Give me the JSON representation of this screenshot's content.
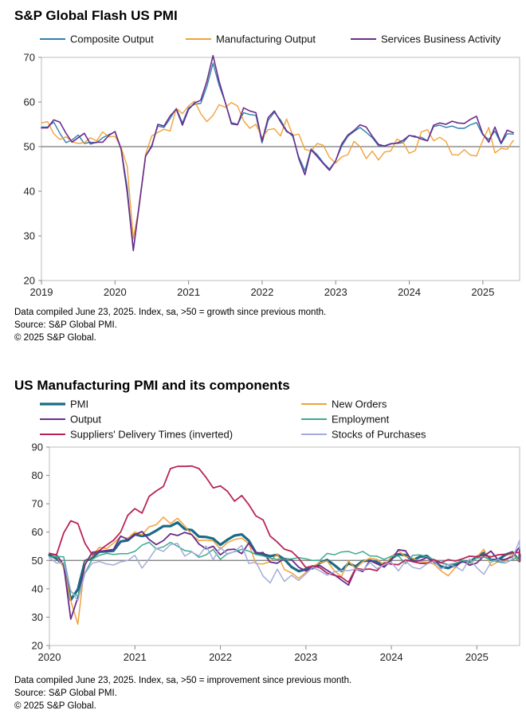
{
  "chart_data": [
    {
      "type": "line",
      "title": "S&P Global Flash US PMI",
      "xlabel": "",
      "ylabel": "",
      "ylim": [
        20,
        70
      ],
      "yticks": [
        20,
        30,
        40,
        50,
        60,
        70
      ],
      "xlim": [
        2019.0,
        2025.5
      ],
      "xticks": [
        {
          "value": 2019,
          "label": "2019"
        },
        {
          "value": 2020,
          "label": "2020"
        },
        {
          "value": 2021,
          "label": "2021"
        },
        {
          "value": 2022,
          "label": "2022"
        },
        {
          "value": 2023,
          "label": "2023"
        },
        {
          "value": 2024,
          "label": "2024"
        },
        {
          "value": 2025,
          "label": "2025"
        }
      ],
      "reference_line": 50,
      "start": 2019.0,
      "step": 0.0833,
      "series": [
        {
          "name": "Composite Output",
          "color": "#2e7fae",
          "width": 1.4,
          "values": [
            54.4,
            54.4,
            55.5,
            53.0,
            50.9,
            51.5,
            52.6,
            50.7,
            51.0,
            50.9,
            52.0,
            52.7,
            53.3,
            49.6,
            40.9,
            27.0,
            37.0,
            47.9,
            50.3,
            54.6,
            54.3,
            56.3,
            58.6,
            55.3,
            58.7,
            59.5,
            59.7,
            63.5,
            68.7,
            63.7,
            59.9,
            55.4,
            55.0,
            57.6,
            57.2,
            57.0,
            50.8,
            55.9,
            57.7,
            56.0,
            53.6,
            52.3,
            47.7,
            44.6,
            49.5,
            48.2,
            46.4,
            45.0,
            46.8,
            50.1,
            52.3,
            53.4,
            54.3,
            53.2,
            52.0,
            50.2,
            50.2,
            50.7,
            50.7,
            50.9,
            52.5,
            52.1,
            52.1,
            51.3,
            54.5,
            54.8,
            54.3,
            54.6,
            54.1,
            54.1,
            54.9,
            55.4,
            52.7,
            51.6,
            53.5,
            50.6,
            52.9,
            52.8
          ]
        },
        {
          "name": "Manufacturing Output",
          "color": "#f0a23b",
          "width": 1.4,
          "values": [
            55.3,
            55.6,
            52.9,
            51.6,
            52.2,
            51.1,
            50.7,
            50.9,
            52.0,
            51.3,
            53.3,
            52.2,
            52.3,
            49.8,
            45.6,
            29.4,
            37.0,
            48.3,
            52.4,
            53.2,
            53.9,
            53.5,
            58.6,
            57.4,
            59.1,
            60.2,
            57.4,
            55.6,
            57.0,
            59.4,
            58.8,
            59.9,
            59.1,
            55.8,
            54.1,
            55.0,
            52.0,
            53.8,
            54.0,
            52.4,
            56.2,
            52.5,
            52.8,
            49.4,
            49.0,
            50.7,
            50.3,
            47.6,
            46.3,
            47.7,
            48.2,
            51.2,
            50.0,
            47.3,
            49.0,
            47.0,
            48.8,
            49.0,
            51.7,
            51.0,
            48.5,
            49.1,
            53.3,
            53.8,
            51.3,
            52.1,
            51.2,
            48.2,
            48.1,
            49.3,
            48.1,
            47.9,
            51.3,
            54.3,
            48.6,
            49.6,
            49.4,
            51.4
          ]
        },
        {
          "name": "Services Business Activity",
          "color": "#6b2c8c",
          "width": 1.6,
          "values": [
            54.2,
            54.2,
            56.0,
            55.5,
            53.0,
            51.0,
            52.0,
            53.0,
            50.6,
            51.0,
            51.0,
            52.5,
            53.4,
            49.4,
            39.8,
            26.7,
            37.5,
            47.9,
            50.0,
            55.0,
            54.6,
            56.9,
            58.4,
            54.8,
            58.3,
            59.8,
            60.4,
            64.7,
            70.4,
            64.6,
            59.9,
            55.1,
            54.9,
            58.7,
            58.0,
            57.6,
            51.2,
            56.5,
            58.0,
            55.6,
            53.4,
            52.7,
            47.3,
            43.7,
            49.3,
            47.8,
            46.2,
            44.7,
            46.8,
            50.6,
            52.6,
            53.6,
            54.9,
            54.4,
            52.3,
            50.5,
            50.1,
            50.6,
            50.8,
            51.4,
            52.5,
            52.3,
            51.7,
            51.3,
            54.8,
            55.3,
            55.0,
            55.7,
            55.3,
            55.2,
            56.1,
            56.8,
            52.9,
            51.0,
            54.4,
            50.8,
            53.7,
            53.1
          ]
        }
      ]
    },
    {
      "type": "line",
      "title": "US Manufacturing PMI and its components",
      "xlabel": "",
      "ylabel": "",
      "ylim": [
        20,
        90
      ],
      "yticks": [
        20,
        30,
        40,
        50,
        60,
        70,
        80,
        90
      ],
      "xlim": [
        2020.0,
        2025.5
      ],
      "xticks": [
        {
          "value": 2020,
          "label": "2020"
        },
        {
          "value": 2021,
          "label": "2021"
        },
        {
          "value": 2022,
          "label": "2022"
        },
        {
          "value": 2023,
          "label": "2023"
        },
        {
          "value": 2024,
          "label": "2024"
        },
        {
          "value": 2025,
          "label": "2025"
        }
      ],
      "reference_line": 50,
      "start": 2020.0,
      "step": 0.0833,
      "series": [
        {
          "name": "PMI",
          "color": "#1a6b86",
          "width": 3.2,
          "values": [
            51.9,
            50.7,
            48.5,
            36.1,
            39.8,
            49.8,
            50.9,
            53.1,
            53.2,
            53.4,
            56.7,
            57.1,
            59.2,
            58.6,
            59.1,
            60.5,
            62.1,
            62.1,
            63.4,
            61.1,
            60.7,
            58.4,
            58.3,
            57.7,
            55.5,
            57.3,
            58.8,
            59.2,
            57.0,
            52.7,
            52.2,
            51.5,
            52.0,
            50.4,
            47.7,
            46.2,
            46.9,
            47.3,
            49.2,
            50.2,
            48.4,
            46.3,
            49.0,
            47.9,
            49.8,
            50.0,
            49.4,
            47.9,
            50.7,
            52.2,
            51.9,
            50.0,
            51.3,
            51.6,
            49.6,
            47.9,
            47.3,
            48.5,
            49.7,
            49.4,
            51.2,
            52.7,
            50.2,
            50.2,
            52.0,
            52.9,
            49.8,
            52.0
          ]
        },
        {
          "name": "New Orders",
          "color": "#f0a23b",
          "width": 1.5,
          "values": [
            52.6,
            51.6,
            47.5,
            35.8,
            27.5,
            49.4,
            51.5,
            54.7,
            54.1,
            56.1,
            58.4,
            57.8,
            60.1,
            59.0,
            61.9,
            62.6,
            65.3,
            63.0,
            64.9,
            62.2,
            59.0,
            57.0,
            57.2,
            56.9,
            54.0,
            56.3,
            57.4,
            57.9,
            55.9,
            48.9,
            48.8,
            49.6,
            52.3,
            46.8,
            45.6,
            43.7,
            45.7,
            48.0,
            49.2,
            49.8,
            46.4,
            44.3,
            49.8,
            47.1,
            49.6,
            50.8,
            50.4,
            48.4,
            51.2,
            53.4,
            51.4,
            50.8,
            49.6,
            49.4,
            48.7,
            46.3,
            44.6,
            47.5,
            49.9,
            48.3,
            51.1,
            54.0,
            48.1,
            49.6,
            49.7,
            52.4,
            49.8,
            52.0
          ]
        },
        {
          "name": "Output",
          "color": "#6b2c8c",
          "width": 1.8,
          "values": [
            52.4,
            52.0,
            48.5,
            29.3,
            37.0,
            48.5,
            52.9,
            53.2,
            53.5,
            53.9,
            58.6,
            57.4,
            59.1,
            60.2,
            57.4,
            55.6,
            57.0,
            59.4,
            58.8,
            59.9,
            59.1,
            55.8,
            54.1,
            55.0,
            52.0,
            53.8,
            54.0,
            52.4,
            56.2,
            52.5,
            52.8,
            49.4,
            49.0,
            50.7,
            50.3,
            47.6,
            46.3,
            47.7,
            48.2,
            46.5,
            45.0,
            43.1,
            41.3,
            47.0,
            46.1,
            50.0,
            48.8,
            47.7,
            50.0,
            53.8,
            53.4,
            49.6,
            50.0,
            51.0,
            49.6,
            49.2,
            48.5,
            47.8,
            49.9,
            48.3,
            49.1,
            51.5,
            53.3,
            50.2,
            50.4,
            51.3,
            54.7,
            51.4
          ]
        },
        {
          "name": "Employment",
          "color": "#3daa8e",
          "width": 1.5,
          "values": [
            51.2,
            51.4,
            51.3,
            39.0,
            37.4,
            45.6,
            50.4,
            51.8,
            52.5,
            52.1,
            52.4,
            52.4,
            53.2,
            55.4,
            56.4,
            54.1,
            54.8,
            56.4,
            55.0,
            53.5,
            53.1,
            51.1,
            52.0,
            53.9,
            50.4,
            52.4,
            53.1,
            53.9,
            53.3,
            52.1,
            51.6,
            50.8,
            50.4,
            50.5,
            50.6,
            51.0,
            50.6,
            50.0,
            50.1,
            52.5,
            52.0,
            53.0,
            53.2,
            52.3,
            53.2,
            51.6,
            51.5,
            50.4,
            51.5,
            51.6,
            48.9,
            51.8,
            52.0,
            51.3,
            50.3,
            49.3,
            48.5,
            49.0,
            50.0,
            49.3,
            50.8,
            51.2,
            50.2,
            49.5,
            49.1,
            50.3,
            51.3,
            52.1
          ]
        },
        {
          "name": "Suppliers' Delivery Times (inverted)",
          "color": "#b8245a",
          "width": 1.8,
          "values": [
            52.5,
            52.0,
            59.7,
            64.0,
            63.0,
            56.0,
            52.1,
            53.5,
            55.4,
            57.1,
            60.0,
            65.9,
            68.3,
            66.7,
            72.6,
            74.5,
            76.1,
            82.4,
            83.2,
            83.2,
            83.3,
            82.4,
            79.3,
            75.6,
            76.3,
            74.4,
            70.9,
            72.9,
            69.7,
            65.7,
            64.3,
            58.6,
            56.5,
            54.0,
            53.2,
            50.8,
            47.5,
            48.1,
            47.4,
            45.5,
            44.8,
            44.1,
            42.3,
            47.2,
            46.8,
            47.0,
            46.4,
            49.2,
            48.7,
            48.5,
            50.2,
            49.6,
            49.0,
            48.9,
            50.3,
            49.2,
            50.3,
            49.8,
            50.6,
            51.5,
            51.3,
            51.9,
            51.3,
            52.0,
            52.2,
            52.7,
            52.8,
            49.8
          ]
        },
        {
          "name": "Stocks of Purchases",
          "color": "#a5acd8",
          "width": 1.5,
          "values": [
            51.0,
            49.1,
            49.2,
            39.4,
            35.8,
            45.4,
            49.0,
            49.6,
            48.8,
            48.4,
            49.5,
            50.0,
            51.8,
            47.3,
            50.6,
            54.2,
            53.2,
            55.6,
            56.0,
            51.5,
            53.0,
            51.6,
            55.1,
            50.3,
            54.6,
            52.2,
            53.2,
            55.3,
            48.9,
            49.5,
            44.5,
            42.1,
            46.9,
            42.6,
            44.8,
            42.9,
            45.3,
            47.6,
            46.3,
            44.8,
            46.0,
            46.5,
            46.4,
            47.0,
            46.5,
            49.3,
            47.1,
            48.5,
            49.4,
            46.3,
            49.8,
            47.6,
            47.0,
            48.7,
            49.8,
            47.0,
            48.6,
            47.9,
            46.4,
            50.6,
            47.5,
            45.1,
            49.3,
            50.4,
            49.1,
            50.5,
            57.1,
            54.0
          ]
        }
      ]
    }
  ],
  "notes1": {
    "line1": "Data compiled June 23, 2025. Index, sa, >50 = growth since previous month.",
    "line2": "Source: S&P Global PMI.",
    "line3": "© 2025 S&P Global."
  },
  "notes2": {
    "line1": "Data compiled June 23, 2025. Index, sa, >50 = improvement since previous month.",
    "line2": "Source: S&P Global PMI.",
    "line3": "© 2025 S&P Global."
  }
}
